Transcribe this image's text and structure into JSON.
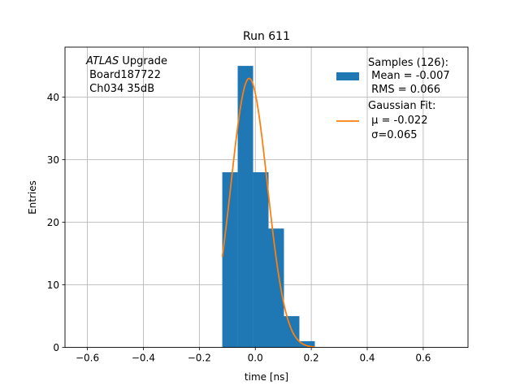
{
  "chart_data": {
    "type": "bar",
    "title": "Run 611",
    "xlabel": "time [ns]",
    "ylabel": "Entries",
    "xlim": [
      -0.68,
      0.76
    ],
    "ylim": [
      0,
      48
    ],
    "xticks": [
      -0.6,
      -0.4,
      -0.2,
      0.0,
      0.2,
      0.4,
      0.6
    ],
    "xtick_labels": [
      "−0.6",
      "−0.4",
      "−0.2",
      "0.0",
      "0.2",
      "0.4",
      "0.6"
    ],
    "yticks": [
      0,
      10,
      20,
      30,
      40
    ],
    "ytick_labels": [
      "0",
      "10",
      "20",
      "30",
      "40"
    ],
    "grid": true,
    "histogram": {
      "bin_edges": [
        -0.118,
        -0.0629,
        -0.0078,
        0.0473,
        0.1024,
        0.1575,
        0.2126
      ],
      "counts": [
        28,
        45,
        28,
        19,
        5,
        1
      ],
      "color": "#1f77b4"
    },
    "fit": {
      "type": "gaussian",
      "amplitude": 43,
      "mu": -0.022,
      "sigma": 0.065,
      "x_range": [
        -0.118,
        0.2126
      ],
      "color": "#ff7f0e"
    },
    "annotation": {
      "line1_italic": "ATLAS",
      "line1_rest": " Upgrade",
      "line2": " Board187722",
      "line3": " Ch034 35dB"
    },
    "legend": {
      "placement": "top-right",
      "entries": [
        {
          "kind": "patch",
          "color": "#1f77b4",
          "lines": [
            "Samples (126):",
            " Mean = -0.007",
            " RMS = 0.066"
          ]
        },
        {
          "kind": "line",
          "color": "#ff7f0e",
          "lines": [
            "Gaussian Fit:",
            " μ = -0.022",
            " σ=0.065"
          ]
        }
      ]
    }
  }
}
